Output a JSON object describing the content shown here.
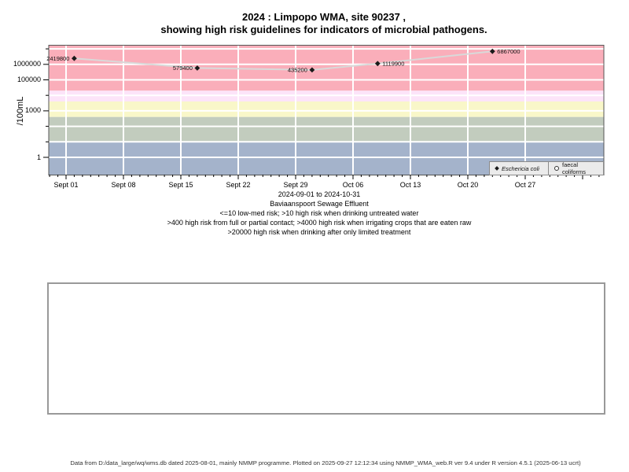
{
  "title": {
    "line1": "2024 : Limpopo WMA, site 90237 ,",
    "line2": "showing high risk guidelines for indicators of microbial pathogens."
  },
  "chart_data": {
    "type": "line",
    "title": "2024 : Limpopo WMA, site 90237 , showing high risk guidelines for indicators of microbial pathogens.",
    "x_axis": {
      "start_date": "2024-09-01",
      "end_date": "2024-10-31",
      "tick_labels": [
        "Sept 01",
        "Sept 08",
        "Sept 15",
        "Sept 22",
        "Sept 29",
        "Oct 06",
        "Oct 13",
        "Oct 20",
        "Oct 27"
      ],
      "tick_interval_days": 7,
      "minor_tick_interval_days": 1
    },
    "y_axis": {
      "label": "/100mL",
      "scale": "log10",
      "tick_values": [
        1,
        1000,
        100000,
        1000000
      ],
      "tick_labels": [
        "1",
        "1000",
        "100000",
        "1000000"
      ],
      "minor_tick_values": [
        10,
        100,
        10000,
        10000000
      ],
      "range_approx": [
        0.08,
        18000000
      ],
      "grid": true
    },
    "risk_bands": [
      {
        "name": "gt-20000-drinking-limited-treatment",
        "min": 20000,
        "max": null,
        "color": "#faaeba"
      },
      {
        "name": "4000-20000-irrigating-raw-crops",
        "min": 4000,
        "max": 20000,
        "color": "#fce4f9"
      },
      {
        "name": "400-4000-full-partial-contact",
        "min": 400,
        "max": 4000,
        "color": "#f9f7c9"
      },
      {
        "name": "10-400-drinking-untreated",
        "min": 10,
        "max": 400,
        "color": "#c2ccbe"
      },
      {
        "name": "lte-10-low-med-risk",
        "min": null,
        "max": 10,
        "color": "#a4b3cb"
      }
    ],
    "series": [
      {
        "name": "Eschericia coli",
        "marker": "filled-diamond",
        "marker_color": "#1a1a1a",
        "line_color": "#d9d9d9",
        "points": [
          {
            "date": "2024-09-02",
            "day": 1,
            "value": 2419800,
            "label": "2419800",
            "label_side": "left"
          },
          {
            "date": "2024-09-17",
            "day": 16,
            "value": 579400,
            "label": "579400",
            "label_side": "left"
          },
          {
            "date": "2024-10-01",
            "day": 30,
            "value": 435200,
            "label": "435200",
            "label_side": "left"
          },
          {
            "date": "2024-10-09",
            "day": 38,
            "value": 1119900,
            "label": "1119900",
            "label_side": "right"
          },
          {
            "date": "2024-10-23",
            "day": 52,
            "value": 6867000,
            "label": "6867000",
            "label_side": "right"
          }
        ]
      },
      {
        "name": "faecal coliforms",
        "marker": "open-circle",
        "marker_color": "#1a1a1a",
        "line_color": "#d9d9d9",
        "points": []
      }
    ],
    "legend": {
      "position": "bottom-right",
      "entries": [
        "Eschericia coli",
        "faecal coliforms"
      ]
    }
  },
  "subtitle": {
    "date_range": "2024-09-01 to 2024-10-31",
    "site_name": "Baviaanspoort Sewage Effluent",
    "guideline_line1": "<=10 low-med risk; >10 high risk when drinking untreated water",
    "guideline_line2": ">400 high risk from full or partial contact; >4000 high risk when irrigating crops that are eaten raw",
    "guideline_line3": ">20000 high risk when drinking after only limited treatment"
  },
  "footer": {
    "text": "Data from D:/data_large/wq/wms.db dated 2025-08-01, mainly NMMP programme. Plotted on 2025-09-27 12:12:34 using NMMP_WMA_web.R ver 9.4 under R version 4.5.1 (2025-06-13 ucrt)"
  },
  "colors": {
    "band_red": "#faaeba",
    "band_pink": "#fce4f9",
    "band_yellow": "#f9f7c9",
    "band_green": "#c2ccbe",
    "band_blue": "#a4b3cb",
    "series_line": "#d9d9d9",
    "grid_line": "#ffffff"
  }
}
